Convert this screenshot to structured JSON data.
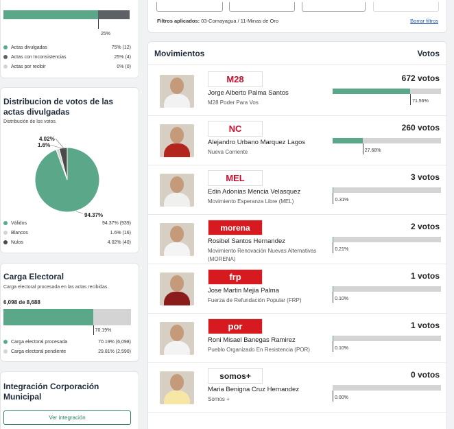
{
  "colors": {
    "green": "#5aa889",
    "light_gray": "#d4d4d4",
    "dark_gray": "#5d6165",
    "mid_gray": "#4a4a4a",
    "title": "#1d2b3a",
    "link": "#1f57b5"
  },
  "actas": {
    "bar_fraction": 0.75,
    "bar_label": "25%",
    "legend": [
      {
        "label": "Actas divulgadas",
        "value": "75% (12)",
        "color": "#5aa889"
      },
      {
        "label": "Actas con Inconsistencias",
        "value": "25% (4)",
        "color": "#5d6165"
      },
      {
        "label": "Actas por recibir",
        "value": "0% (0)",
        "color": "#d4d4d4"
      }
    ]
  },
  "distribucion": {
    "title": "Distribucion de votos de las actas divulgadas",
    "subtitle": "Distribución de los votos.",
    "legend": [
      {
        "label": "Válidos",
        "value": "94.37% (939)",
        "color": "#5aa889"
      },
      {
        "label": "Blancos",
        "value": "1.6% (16)",
        "color": "#d4d4d4"
      },
      {
        "label": "Nulos",
        "value": "4.02% (40)",
        "color": "#4a4a4a"
      }
    ]
  },
  "chart_data": {
    "type": "pie",
    "title": "",
    "slices": [
      {
        "label": "Válidos",
        "value": 94.37,
        "color": "#5aa889",
        "text": "94.37%"
      },
      {
        "label": "Blancos",
        "value": 1.6,
        "color": "#d4d4d4",
        "text": "1.6%"
      },
      {
        "label": "Nulos",
        "value": 4.02,
        "color": "#4a4a4a",
        "text": "4.02%"
      }
    ]
  },
  "carga": {
    "title": "Carga Electoral",
    "subtitle": "Carga electoral procesada en las actas recibidas.",
    "count": "6,098 de 8,688",
    "fraction": 0.7019,
    "bar_label": "70.19%",
    "legend": [
      {
        "label": "Carga electoral procesada",
        "value": "70.19% (6,098)",
        "color": "#5aa889"
      },
      {
        "label": "Carga electoral pendiente",
        "value": "29.81% (2,590)",
        "color": "#d4d4d4"
      }
    ]
  },
  "integracion": {
    "title": "Integración Corporación Municipal",
    "button": "Ver integración"
  },
  "filtros": {
    "label": "Filtros aplicados:",
    "value": "03-Comayagua / 11-Minas de Oro",
    "clear": "Borrar filtros"
  },
  "movimientos": {
    "title": "Movimientos",
    "votes_header": "Votos",
    "candidates": [
      {
        "name": "Jorge Alberto Palma Santos",
        "party": "M28 Poder Para Vos",
        "votes": "672 votos",
        "pct": "71.56%",
        "fraction": 0.7156,
        "logo": "M28",
        "logo_color": "#c8102e",
        "logo_bg": "#ffffff",
        "shirt": "#f2f2f2"
      },
      {
        "name": "Alejandro Urbano Marquez Lagos",
        "party": "Nueva Corriente",
        "votes": "260 votos",
        "pct": "27.68%",
        "fraction": 0.2768,
        "logo": "NC",
        "logo_color": "#c8102e",
        "logo_bg": "#ffffff",
        "shirt": "#b3261e"
      },
      {
        "name": "Edin Adonias Mencia Velasquez",
        "party": "Movimiento Esperanza Libre (MEL)",
        "votes": "3 votos",
        "pct": "0.31%",
        "fraction": 0.0031,
        "logo": "MEL",
        "logo_color": "#c8102e",
        "logo_bg": "#ffffff",
        "shirt": "#f0f0ee"
      },
      {
        "name": "Rosibel Santos Hernandez",
        "party": "Movimiento Renovación Nuevas Alternativas (MORENA)",
        "votes": "2 votos",
        "pct": "0.21%",
        "fraction": 0.0021,
        "logo": "morena",
        "logo_color": "#ffffff",
        "logo_bg": "#d71920",
        "shirt": "#f4f4f4"
      },
      {
        "name": "Jose Martin Mejia Palma",
        "party": "Fuerza de Refundación Popular (FRP)",
        "votes": "1 votos",
        "pct": "0.10%",
        "fraction": 0.001,
        "logo": "frp",
        "logo_color": "#ffffff",
        "logo_bg": "#d71920",
        "shirt": "#8a1c1c"
      },
      {
        "name": "Roni Misael Banegas Ramirez",
        "party": "Pueblo Organizado En Resistencia (POR)",
        "votes": "1 votos",
        "pct": "0.10%",
        "fraction": 0.001,
        "logo": "por",
        "logo_color": "#ffffff",
        "logo_bg": "#d71920",
        "shirt": "#f3f3f3"
      },
      {
        "name": "Maria Benigna Cruz Hernandez",
        "party": "Somos +",
        "votes": "0 votos",
        "pct": "0.00%",
        "fraction": 0.0,
        "logo": "somos+",
        "logo_color": "#222222",
        "logo_bg": "#ffffff",
        "shirt": "#f6e7a6"
      }
    ]
  }
}
